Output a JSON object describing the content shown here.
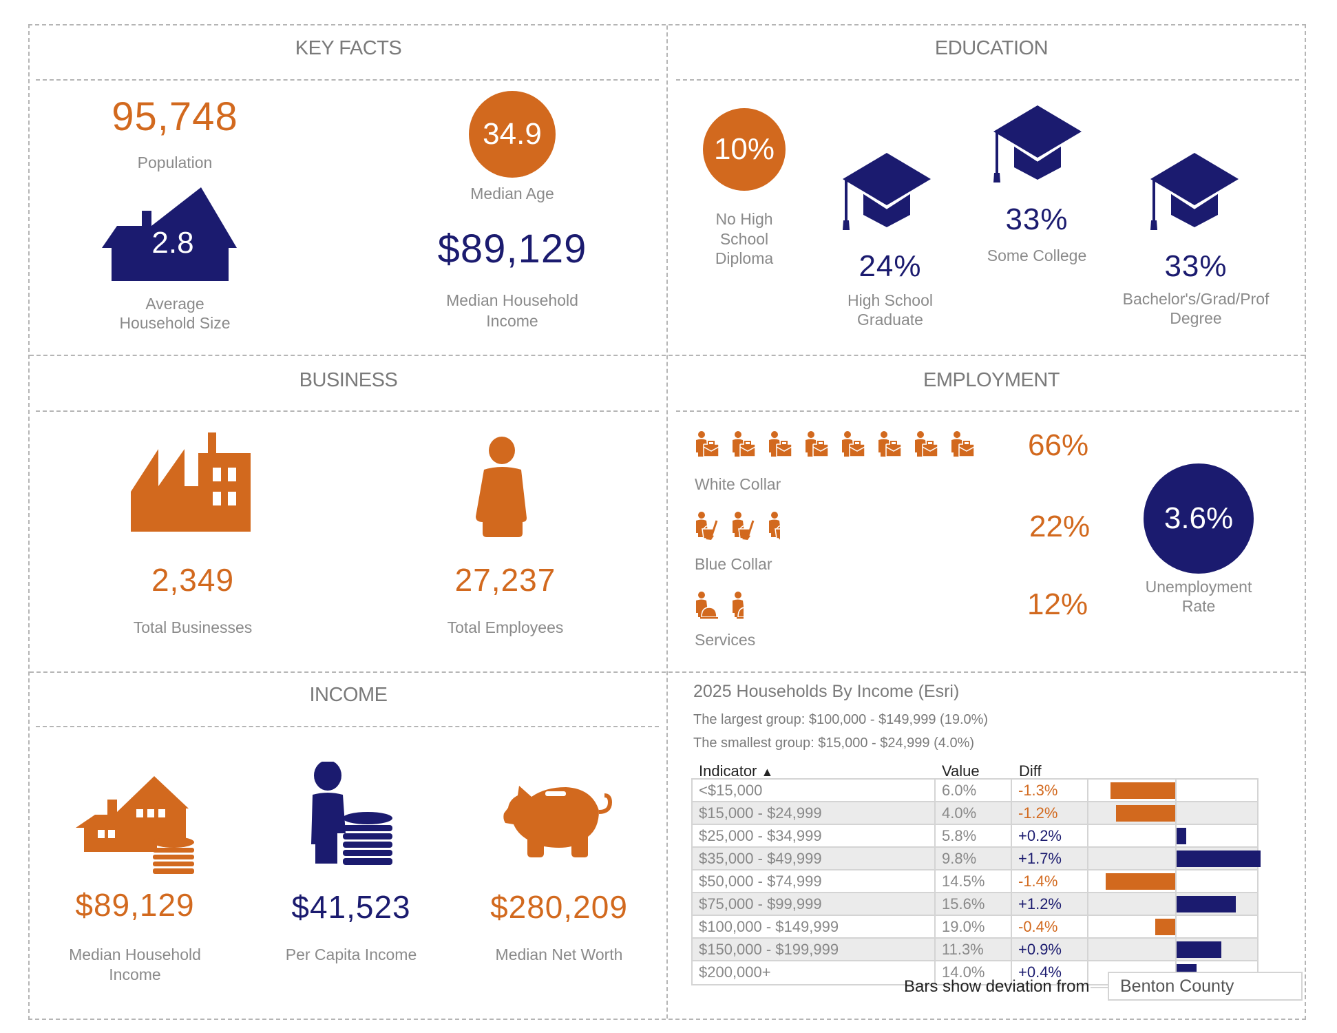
{
  "colors": {
    "accent_orange": "#d2691e",
    "accent_navy": "#1b1b6f",
    "border_gray": "#b5b5b5"
  },
  "key_facts": {
    "title": "KEY FACTS",
    "population": {
      "value": "95,748",
      "label": "Population"
    },
    "median_age": {
      "value": "34.9",
      "label": "Median Age"
    },
    "avg_household_size": {
      "value": "2.8",
      "label_line1": "Average",
      "label_line2": "Household Size",
      "icon": "house-icon"
    },
    "median_household_income": {
      "value": "$89,129",
      "label_line1": "Median Household",
      "label_line2": "Income"
    }
  },
  "education": {
    "title": "EDUCATION",
    "no_high_school": {
      "value": "10%",
      "label_line1": "No High",
      "label_line2": "School",
      "label_line3": "Diploma"
    },
    "high_school_graduate": {
      "value": "24%",
      "label_line1": "High School",
      "label_line2": "Graduate",
      "icon": "graduation-cap-icon"
    },
    "some_college": {
      "value": "33%",
      "label": "Some College",
      "icon": "graduation-cap-icon"
    },
    "bachelors": {
      "value": "33%",
      "label_line1": "Bachelor's/Grad/Prof",
      "label_line2": "Degree",
      "icon": "graduation-cap-icon"
    }
  },
  "business": {
    "title": "BUSINESS",
    "total_businesses": {
      "value": "2,349",
      "label": "Total Businesses",
      "icon": "factory-icon"
    },
    "total_employees": {
      "value": "27,237",
      "label": "Total Employees",
      "icon": "person-icon"
    }
  },
  "employment": {
    "title": "EMPLOYMENT",
    "white_collar": {
      "value": "66%",
      "label": "White Collar",
      "icon": "worker-briefcase-icon",
      "icon_count": 8
    },
    "blue_collar": {
      "value": "22%",
      "label": "Blue Collar",
      "icon": "worker-bucket-icon",
      "icon_count": 2.5
    },
    "services": {
      "value": "12%",
      "label": "Services",
      "icon": "worker-service-bell-icon",
      "icon_count": 1.5
    },
    "unemployment": {
      "value": "3.6%",
      "label_line1": "Unemployment",
      "label_line2": "Rate"
    }
  },
  "income": {
    "title": "INCOME",
    "median_household_income": {
      "value": "$89,129",
      "label_line1": "Median Household",
      "label_line2": "Income",
      "icon": "house-coins-icon"
    },
    "per_capita_income": {
      "value": "$41,523",
      "label": "Per Capita Income",
      "icon": "person-coins-icon"
    },
    "median_net_worth": {
      "value": "$280,209",
      "label": "Median Net Worth",
      "icon": "piggy-bank-icon"
    }
  },
  "households_by_income": {
    "title": "2025 Households By Income (Esri)",
    "largest": "The largest group: $100,000 - $149,999 (19.0%)",
    "smallest": "The smallest group: $15,000 - $24,999 (4.0%)",
    "columns": {
      "indicator": "Indicator",
      "sort_icon": "▲",
      "value": "Value",
      "diff": "Diff"
    },
    "rows": [
      {
        "indicator": "<$15,000",
        "value": "6.0%",
        "diff": "-1.3%"
      },
      {
        "indicator": "$15,000 - $24,999",
        "value": "4.0%",
        "diff": "-1.2%"
      },
      {
        "indicator": "$25,000 - $34,999",
        "value": "5.8%",
        "diff": "+0.2%"
      },
      {
        "indicator": "$35,000 - $49,999",
        "value": "9.8%",
        "diff": "+1.7%"
      },
      {
        "indicator": "$50,000 - $74,999",
        "value": "14.5%",
        "diff": "-1.4%"
      },
      {
        "indicator": "$75,000 - $99,999",
        "value": "15.6%",
        "diff": "+1.2%"
      },
      {
        "indicator": "$100,000 - $149,999",
        "value": "19.0%",
        "diff": "-0.4%"
      },
      {
        "indicator": "$150,000 - $199,999",
        "value": "11.3%",
        "diff": "+0.9%"
      },
      {
        "indicator": "$200,000+",
        "value": "14.0%",
        "diff": "+0.4%"
      }
    ],
    "legend_text": "Bars show deviation from",
    "comparison_area": "Benton County"
  },
  "chart_data": {
    "type": "bar",
    "title": "2025 Households By Income (Esri)",
    "categories": [
      "<$15,000",
      "$15,000 - $24,999",
      "$25,000 - $34,999",
      "$35,000 - $49,999",
      "$50,000 - $74,999",
      "$75,000 - $99,999",
      "$100,000 - $149,999",
      "$150,000 - $199,999",
      "$200,000+"
    ],
    "series": [
      {
        "name": "Value",
        "values": [
          6.0,
          4.0,
          5.8,
          9.8,
          14.5,
          15.6,
          19.0,
          11.3,
          14.0
        ]
      },
      {
        "name": "Diff",
        "values": [
          -1.3,
          -1.2,
          0.2,
          1.7,
          -1.4,
          1.2,
          -0.4,
          0.9,
          0.4
        ]
      }
    ],
    "xlabel": "",
    "ylabel": "",
    "xlim": [
      -1.75,
      1.7
    ]
  }
}
